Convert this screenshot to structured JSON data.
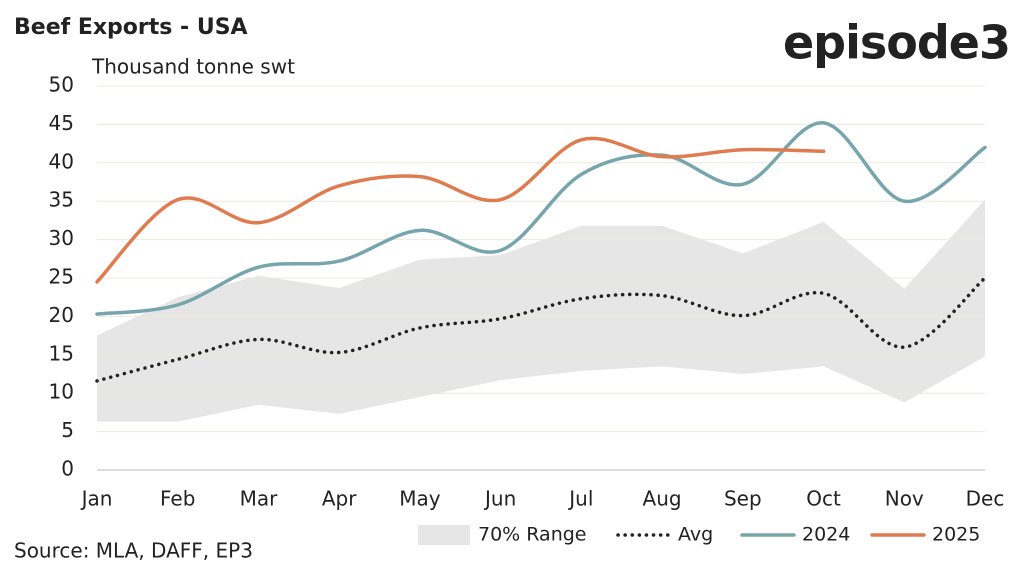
{
  "chart_data": {
    "type": "line",
    "title": "Beef Exports - USA",
    "brand": "episode3",
    "y_label": "Thousand tonne swt",
    "source": "Source: MLA, DAFF, EP3",
    "categories": [
      "Jan",
      "Feb",
      "Mar",
      "Apr",
      "May",
      "Jun",
      "Jul",
      "Aug",
      "Sep",
      "Oct",
      "Nov",
      "Dec"
    ],
    "range": {
      "name": "70% Range",
      "color": "#e6e6e6",
      "lower": [
        6.3,
        6.3,
        8.5,
        7.3,
        9.5,
        11.7,
        12.9,
        13.5,
        12.5,
        13.5,
        8.8,
        14.8
      ],
      "upper": [
        17.5,
        22.5,
        25.3,
        23.7,
        27.4,
        28,
        31.8,
        31.8,
        28.2,
        32.3,
        23.6,
        35.2
      ]
    },
    "series": [
      {
        "name": "Avg",
        "color": "#222222",
        "dotted": true,
        "values": [
          11.6,
          14.4,
          17.0,
          15.3,
          18.5,
          19.7,
          22.3,
          22.7,
          20.1,
          23.0,
          16.0,
          25.0
        ]
      },
      {
        "name": "2024",
        "color": "#76a5ad",
        "values": [
          20.3,
          21.5,
          26.4,
          27.2,
          31.2,
          28.6,
          38.5,
          41.0,
          37.2,
          45.2,
          35.0,
          42.0
        ]
      },
      {
        "name": "2025",
        "color": "#e07b4f",
        "values": [
          24.5,
          35.2,
          32.2,
          37.0,
          38.2,
          35.2,
          43.0,
          40.8,
          41.7,
          41.5,
          null,
          null
        ]
      }
    ],
    "ylim": [
      0,
      50
    ],
    "yticks": [
      0,
      5,
      10,
      15,
      20,
      25,
      30,
      35,
      40,
      45,
      50
    ],
    "grid": true,
    "legend": "bottom"
  }
}
